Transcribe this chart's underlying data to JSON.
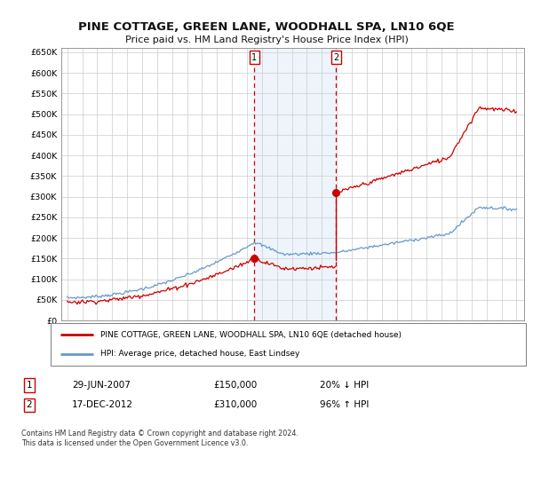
{
  "title": "PINE COTTAGE, GREEN LANE, WOODHALL SPA, LN10 6QE",
  "subtitle": "Price paid vs. HM Land Registry's House Price Index (HPI)",
  "legend_line1": "PINE COTTAGE, GREEN LANE, WOODHALL SPA, LN10 6QE (detached house)",
  "legend_line2": "HPI: Average price, detached house, East Lindsey",
  "annotation1": {
    "num": "1",
    "date": "29-JUN-2007",
    "price": "£150,000",
    "pct": "20% ↓ HPI"
  },
  "annotation2": {
    "num": "2",
    "date": "17-DEC-2012",
    "price": "£310,000",
    "pct": "96% ↑ HPI"
  },
  "footer": "Contains HM Land Registry data © Crown copyright and database right 2024.\nThis data is licensed under the Open Government Licence v3.0.",
  "sale_color": "#cc0000",
  "hpi_color": "#6699cc",
  "shade_color": "#cce0f5",
  "ylim": [
    0,
    660000
  ],
  "yticks": [
    0,
    50000,
    100000,
    150000,
    200000,
    250000,
    300000,
    350000,
    400000,
    450000,
    500000,
    550000,
    600000,
    650000
  ],
  "sale1_x": 2007.49,
  "sale1_y": 150000,
  "sale2_x": 2012.96,
  "sale2_y": 310000,
  "shade_x1": 2007.49,
  "shade_x2": 2012.96,
  "background_color": "#ffffff",
  "xlim_left": 1994.6,
  "xlim_right": 2025.5
}
